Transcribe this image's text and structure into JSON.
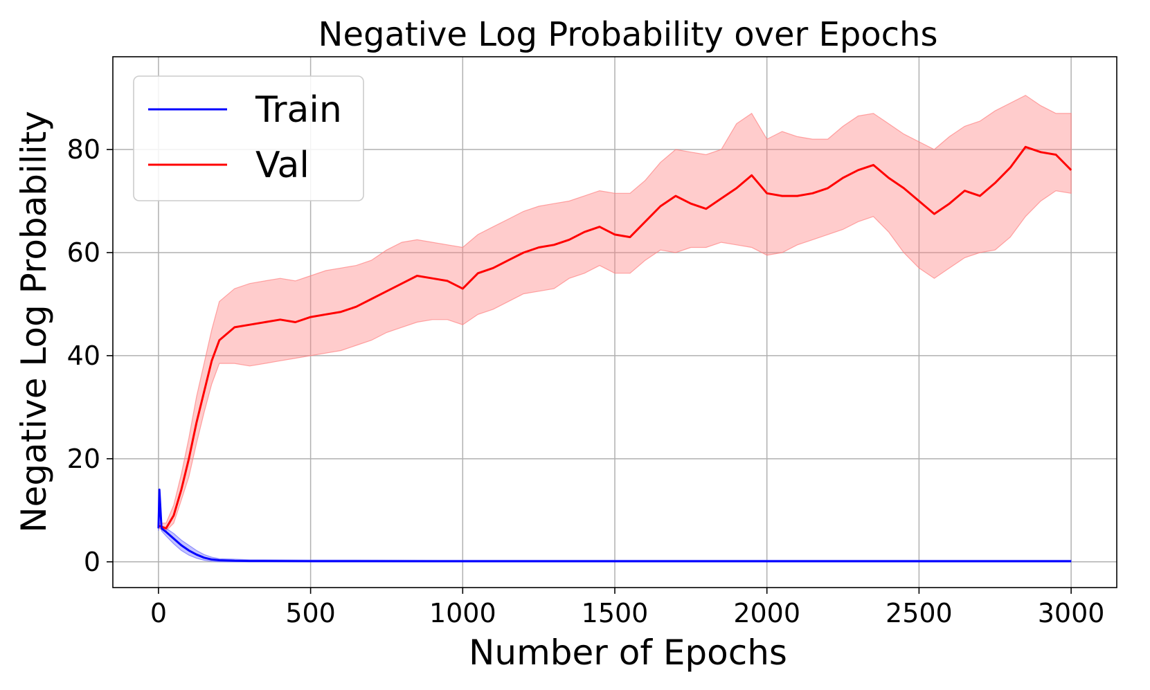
{
  "chart_data": {
    "type": "line",
    "title": "Negative Log Probability over Epochs",
    "xlabel": "Number of Epochs",
    "ylabel": "Negative Log Probability",
    "xlim": [
      -150,
      3150
    ],
    "ylim": [
      -5,
      98
    ],
    "xticks": [
      0,
      500,
      1000,
      1500,
      2000,
      2500,
      3000
    ],
    "yticks": [
      0,
      20,
      40,
      60,
      80
    ],
    "grid": true,
    "legend_position": "upper-left",
    "series": [
      {
        "name": "Train",
        "color": "#0000ff",
        "band_color": "#6b6bff",
        "x": [
          0,
          3,
          10,
          25,
          50,
          75,
          100,
          125,
          150,
          175,
          200,
          250,
          300,
          500,
          1000,
          1500,
          2000,
          2500,
          3000
        ],
        "y": [
          6.5,
          14.0,
          6.5,
          5.8,
          4.5,
          3.2,
          2.2,
          1.4,
          0.8,
          0.45,
          0.3,
          0.2,
          0.15,
          0.12,
          0.1,
          0.1,
          0.1,
          0.1,
          0.1
        ],
        "lower": [
          6.0,
          10.0,
          6.0,
          5.0,
          3.5,
          2.2,
          1.3,
          0.7,
          0.3,
          0.1,
          0.0,
          0.0,
          0.0,
          0.0,
          0.0,
          0.0,
          0.0,
          0.0,
          0.0
        ],
        "upper": [
          7.0,
          14.0,
          7.0,
          6.5,
          5.5,
          4.2,
          3.2,
          2.2,
          1.4,
          0.9,
          0.6,
          0.5,
          0.4,
          0.35,
          0.3,
          0.3,
          0.3,
          0.3,
          0.3
        ]
      },
      {
        "name": "Val",
        "color": "#ff0000",
        "band_color": "#ff8080",
        "x": [
          0,
          25,
          50,
          75,
          100,
          125,
          150,
          175,
          200,
          250,
          300,
          350,
          400,
          450,
          500,
          550,
          600,
          650,
          700,
          750,
          800,
          850,
          900,
          950,
          1000,
          1050,
          1100,
          1150,
          1200,
          1250,
          1300,
          1350,
          1400,
          1450,
          1500,
          1550,
          1600,
          1650,
          1700,
          1750,
          1800,
          1850,
          1900,
          1950,
          2000,
          2050,
          2100,
          2150,
          2200,
          2250,
          2300,
          2350,
          2400,
          2450,
          2500,
          2550,
          2600,
          2650,
          2700,
          2750,
          2800,
          2850,
          2900,
          2950,
          3000
        ],
        "y": [
          7.0,
          6.5,
          9.0,
          14.0,
          20.0,
          27.0,
          33.0,
          39.0,
          43.0,
          45.5,
          46.0,
          46.5,
          47.0,
          46.5,
          47.5,
          48.0,
          48.5,
          49.5,
          51.0,
          52.5,
          54.0,
          55.5,
          55.0,
          54.5,
          53.0,
          56.0,
          57.0,
          58.5,
          60.0,
          61.0,
          61.5,
          62.5,
          64.0,
          65.0,
          63.5,
          63.0,
          66.0,
          69.0,
          71.0,
          69.5,
          68.5,
          70.5,
          72.5,
          75.0,
          71.5,
          71.0,
          71.0,
          71.5,
          72.5,
          74.5,
          76.0,
          77.0,
          74.5,
          72.5,
          70.0,
          67.5,
          69.5,
          72.0,
          71.0,
          73.5,
          76.5,
          80.5,
          79.5,
          79.0,
          76.0
        ],
        "lower": [
          6.5,
          6.0,
          7.5,
          12.0,
          16.5,
          23.0,
          29.0,
          34.5,
          38.5,
          38.5,
          38.0,
          38.5,
          39.0,
          39.5,
          40.0,
          40.5,
          41.0,
          42.0,
          43.0,
          44.5,
          45.5,
          46.5,
          47.0,
          47.0,
          46.0,
          48.0,
          49.0,
          50.5,
          52.0,
          52.5,
          53.0,
          55.0,
          56.0,
          57.5,
          56.0,
          56.0,
          58.5,
          60.5,
          60.0,
          61.0,
          61.0,
          62.0,
          61.5,
          61.0,
          59.5,
          60.0,
          61.5,
          62.5,
          63.5,
          64.5,
          66.0,
          67.0,
          64.0,
          60.0,
          57.0,
          55.0,
          57.0,
          59.0,
          60.0,
          60.5,
          63.0,
          67.0,
          70.0,
          72.0,
          71.5
        ],
        "upper": [
          7.5,
          7.5,
          11.0,
          17.0,
          24.0,
          32.0,
          38.5,
          45.0,
          50.5,
          53.0,
          54.0,
          54.5,
          55.0,
          54.5,
          55.5,
          56.5,
          57.0,
          57.5,
          58.5,
          60.5,
          62.0,
          62.5,
          62.0,
          61.5,
          61.0,
          63.5,
          65.0,
          66.5,
          68.0,
          69.0,
          69.5,
          70.0,
          71.0,
          72.0,
          71.5,
          71.5,
          74.0,
          77.5,
          80.0,
          79.5,
          79.0,
          80.0,
          85.0,
          87.0,
          82.0,
          83.5,
          82.5,
          82.0,
          82.0,
          84.5,
          86.5,
          87.0,
          85.0,
          83.0,
          81.5,
          80.0,
          82.5,
          84.5,
          85.5,
          87.5,
          89.0,
          90.5,
          88.5,
          87.0,
          87.0
        ]
      }
    ]
  }
}
